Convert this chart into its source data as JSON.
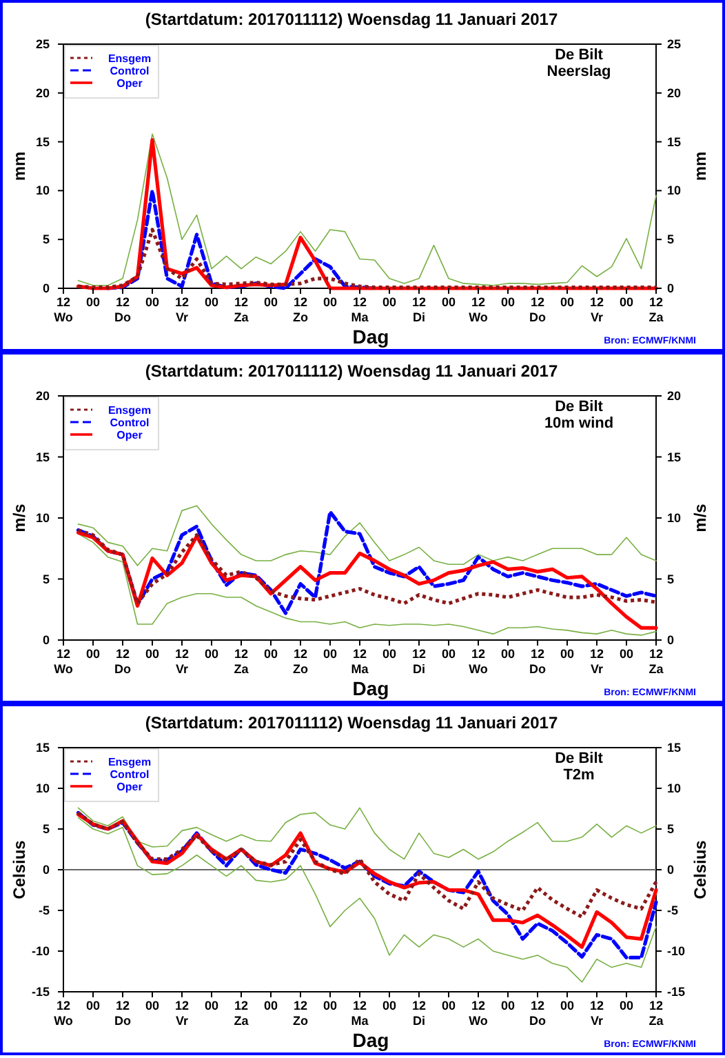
{
  "chart_data": [
    {
      "type": "line",
      "title": "(Startdatum: 2017011112) Woensdag 11 Januari 2017",
      "xlabel": "Dag",
      "ylabel": "mm",
      "y2label": "mm",
      "annotations": [
        "De Bilt\nNeerslag",
        "Bron: ECMWF/KNMI"
      ],
      "legend": "top left",
      "xlim": [
        "2017-01-11T12:00",
        "2017-01-21T12:00"
      ],
      "xticks": [
        {
          "value": "2017-01-11T12:00",
          "label": "12\nWo"
        },
        {
          "value": "2017-01-12T00:00",
          "label": "00"
        },
        {
          "value": "2017-01-12T12:00",
          "label": "12\nDo"
        },
        {
          "value": "2017-01-13T00:00",
          "label": "00"
        },
        {
          "value": "2017-01-13T12:00",
          "label": "12\nVr"
        },
        {
          "value": "2017-01-14T00:00",
          "label": "00"
        },
        {
          "value": "2017-01-14T12:00",
          "label": "12\nZa"
        },
        {
          "value": "2017-01-15T00:00",
          "label": "00"
        },
        {
          "value": "2017-01-15T12:00",
          "label": "12\nZo"
        },
        {
          "value": "2017-01-16T00:00",
          "label": "00"
        },
        {
          "value": "2017-01-16T12:00",
          "label": "12\nMa"
        },
        {
          "value": "2017-01-17T00:00",
          "label": "00"
        },
        {
          "value": "2017-01-17T12:00",
          "label": "12\nDi"
        },
        {
          "value": "2017-01-18T00:00",
          "label": "00"
        },
        {
          "value": "2017-01-18T12:00",
          "label": "12\nWo"
        },
        {
          "value": "2017-01-19T00:00",
          "label": "00"
        },
        {
          "value": "2017-01-19T12:00",
          "label": "12\nDo"
        },
        {
          "value": "2017-01-20T00:00",
          "label": "00"
        },
        {
          "value": "2017-01-20T12:00",
          "label": "12\nVr"
        },
        {
          "value": "2017-01-21T00:00",
          "label": "00"
        },
        {
          "value": "2017-01-21T12:00",
          "label": "12\nZa"
        }
      ],
      "ylim": [
        0,
        25
      ],
      "yticks": [
        0,
        5,
        10,
        15,
        20,
        25
      ],
      "y2lim": [
        0,
        25
      ],
      "y2ticks": [
        0,
        5,
        10,
        15,
        20,
        25
      ],
      "x": [
        "2017-01-11T18:00",
        "2017-01-12T00:00",
        "2017-01-12T06:00",
        "2017-01-12T12:00",
        "2017-01-12T18:00",
        "2017-01-13T00:00",
        "2017-01-13T06:00",
        "2017-01-13T12:00",
        "2017-01-13T18:00",
        "2017-01-14T00:00",
        "2017-01-14T06:00",
        "2017-01-14T12:00",
        "2017-01-14T18:00",
        "2017-01-15T00:00",
        "2017-01-15T06:00",
        "2017-01-15T12:00",
        "2017-01-15T18:00",
        "2017-01-16T00:00",
        "2017-01-16T06:00",
        "2017-01-16T12:00",
        "2017-01-16T18:00",
        "2017-01-17T00:00",
        "2017-01-17T06:00",
        "2017-01-17T12:00",
        "2017-01-17T18:00",
        "2017-01-18T00:00",
        "2017-01-18T06:00",
        "2017-01-18T12:00",
        "2017-01-18T18:00",
        "2017-01-19T00:00",
        "2017-01-19T06:00",
        "2017-01-19T12:00",
        "2017-01-19T18:00",
        "2017-01-20T00:00",
        "2017-01-20T06:00",
        "2017-01-20T12:00",
        "2017-01-20T18:00",
        "2017-01-21T00:00",
        "2017-01-21T06:00",
        "2017-01-21T12:00"
      ],
      "series": [
        {
          "color": "#77b042",
          "line_style": "solid",
          "values": [
            0.8,
            0.3,
            0.3,
            1,
            7,
            15.8,
            11.3,
            5,
            7.5,
            2,
            3.3,
            2,
            3.2,
            2.5,
            3.8,
            5.8,
            3.8,
            6,
            5.8,
            3,
            2.9,
            1,
            0.5,
            1,
            4.4,
            1,
            0.5,
            0.4,
            0.3,
            0.5,
            0.5,
            0.4,
            0.5,
            0.6,
            2.3,
            1.2,
            2.2,
            5.1,
            2,
            9.5
          ]
        },
        {
          "name": "Ensgem",
          "color": "#8b1a1a",
          "line_style": "dotted",
          "values": [
            0.2,
            0.1,
            0.1,
            0.3,
            1.2,
            6,
            2,
            1,
            3,
            0.5,
            0.4,
            0.5,
            0.6,
            0.4,
            0.4,
            0.5,
            1,
            1,
            0.5,
            0.2,
            0.1,
            0.1,
            0.1,
            0.1,
            0.1,
            0.1,
            0.1,
            0.1,
            0.1,
            0.1,
            0.1,
            0.1,
            0.1,
            0.1,
            0.1,
            0.1,
            0.1,
            0.1,
            0.1,
            0.1
          ]
        },
        {
          "name": "Control",
          "color": "#0000ff",
          "line_style": "dashed",
          "values": [
            null,
            null,
            0,
            0.1,
            1,
            10,
            1,
            0.2,
            5.5,
            0.5,
            0.1,
            0.2,
            0.5,
            0.2,
            0,
            1.5,
            3,
            2.2,
            0.2,
            0.1,
            0,
            null,
            null,
            null,
            null,
            null,
            null,
            null,
            null,
            null,
            null,
            null,
            null,
            null,
            null,
            null,
            null,
            null,
            null,
            null
          ]
        },
        {
          "name": "Oper",
          "color": "#ff0000",
          "line_style": "solid",
          "values": [
            0.2,
            0,
            0,
            0.2,
            1.2,
            15.2,
            2,
            1.5,
            2.1,
            0.3,
            0.1,
            0.3,
            0.4,
            0.3,
            0.4,
            5.2,
            2.8,
            0,
            0,
            0,
            0,
            0,
            0,
            0,
            0,
            0,
            0,
            0,
            0,
            0,
            0,
            0,
            0,
            0,
            0,
            0,
            0,
            0,
            0,
            0
          ]
        }
      ]
    },
    {
      "type": "line",
      "title": "(Startdatum: 2017011112) Woensdag 11 Januari 2017",
      "xlabel": "Dag",
      "ylabel": "m/s",
      "y2label": "m/s",
      "annotations": [
        "De Bilt\n10m wind",
        "Bron: ECMWF/KNMI"
      ],
      "legend": "top left",
      "xlim": [
        "2017-01-11T12:00",
        "2017-01-21T12:00"
      ],
      "xticks": [
        {
          "value": "2017-01-11T12:00",
          "label": "12\nWo"
        },
        {
          "value": "2017-01-12T00:00",
          "label": "00"
        },
        {
          "value": "2017-01-12T12:00",
          "label": "12\nDo"
        },
        {
          "value": "2017-01-13T00:00",
          "label": "00"
        },
        {
          "value": "2017-01-13T12:00",
          "label": "12\nVr"
        },
        {
          "value": "2017-01-14T00:00",
          "label": "00"
        },
        {
          "value": "2017-01-14T12:00",
          "label": "12\nZa"
        },
        {
          "value": "2017-01-15T00:00",
          "label": "00"
        },
        {
          "value": "2017-01-15T12:00",
          "label": "12\nZo"
        },
        {
          "value": "2017-01-16T00:00",
          "label": "00"
        },
        {
          "value": "2017-01-16T12:00",
          "label": "12\nMa"
        },
        {
          "value": "2017-01-17T00:00",
          "label": "00"
        },
        {
          "value": "2017-01-17T12:00",
          "label": "12\nDi"
        },
        {
          "value": "2017-01-18T00:00",
          "label": "00"
        },
        {
          "value": "2017-01-18T12:00",
          "label": "12\nWo"
        },
        {
          "value": "2017-01-19T00:00",
          "label": "00"
        },
        {
          "value": "2017-01-19T12:00",
          "label": "12\nDo"
        },
        {
          "value": "2017-01-20T00:00",
          "label": "00"
        },
        {
          "value": "2017-01-20T12:00",
          "label": "12\nVr"
        },
        {
          "value": "2017-01-21T00:00",
          "label": "00"
        },
        {
          "value": "2017-01-21T12:00",
          "label": "12\nZa"
        }
      ],
      "ylim": [
        0,
        20
      ],
      "yticks": [
        0,
        5,
        10,
        15,
        20
      ],
      "y2lim": [
        0,
        20
      ],
      "y2ticks": [
        0,
        5,
        10,
        15,
        20
      ],
      "x": [
        "2017-01-11T18:00",
        "2017-01-12T00:00",
        "2017-01-12T06:00",
        "2017-01-12T12:00",
        "2017-01-12T18:00",
        "2017-01-13T00:00",
        "2017-01-13T06:00",
        "2017-01-13T12:00",
        "2017-01-13T18:00",
        "2017-01-14T00:00",
        "2017-01-14T06:00",
        "2017-01-14T12:00",
        "2017-01-14T18:00",
        "2017-01-15T00:00",
        "2017-01-15T06:00",
        "2017-01-15T12:00",
        "2017-01-15T18:00",
        "2017-01-16T00:00",
        "2017-01-16T06:00",
        "2017-01-16T12:00",
        "2017-01-16T18:00",
        "2017-01-17T00:00",
        "2017-01-17T06:00",
        "2017-01-17T12:00",
        "2017-01-17T18:00",
        "2017-01-18T00:00",
        "2017-01-18T06:00",
        "2017-01-18T12:00",
        "2017-01-18T18:00",
        "2017-01-19T00:00",
        "2017-01-19T06:00",
        "2017-01-19T12:00",
        "2017-01-19T18:00",
        "2017-01-20T00:00",
        "2017-01-20T06:00",
        "2017-01-20T12:00",
        "2017-01-20T18:00",
        "2017-01-21T00:00",
        "2017-01-21T06:00",
        "2017-01-21T12:00"
      ],
      "series": [
        {
          "color": "#77b042",
          "line_style": "solid",
          "values": [
            9.5,
            9.2,
            8,
            7.7,
            6.1,
            7.5,
            7.3,
            10.6,
            11,
            9.5,
            8.2,
            7,
            6.5,
            6.5,
            7,
            7.3,
            7.2,
            7,
            8.5,
            9.6,
            8,
            6.5,
            7,
            7.6,
            6.5,
            6.2,
            6.2,
            7,
            6.5,
            6.8,
            6.5,
            7,
            7.5,
            7.5,
            7.5,
            7,
            7,
            8.4,
            7,
            6.5
          ]
        },
        {
          "color": "#77b042",
          "line_style": "solid",
          "values": [
            8.7,
            8,
            6.8,
            6.4,
            1.3,
            1.3,
            3,
            3.5,
            3.8,
            3.8,
            3.5,
            3.5,
            2.8,
            2.3,
            1.8,
            1.5,
            1.5,
            1.3,
            1.5,
            1,
            1.3,
            1.2,
            1.3,
            1.3,
            1.2,
            1.3,
            1.1,
            0.8,
            0.5,
            1,
            1,
            1.1,
            0.9,
            0.8,
            0.6,
            0.5,
            0.8,
            0.5,
            0.4,
            0.7
          ]
        },
        {
          "name": "Ensgem",
          "color": "#8b1a1a",
          "line_style": "dotted",
          "values": [
            9,
            8.6,
            7.4,
            7,
            3,
            4.6,
            5.4,
            7.2,
            8.6,
            6.6,
            5.3,
            5.6,
            5.1,
            4,
            3.6,
            3.4,
            3.3,
            3.6,
            3.9,
            4.2,
            3.7,
            3.4,
            3,
            3.7,
            3.3,
            3,
            3.4,
            3.8,
            3.7,
            3.5,
            3.8,
            4.1,
            3.8,
            3.5,
            3.5,
            3.7,
            3.5,
            3.2,
            3.3,
            3.1
          ]
        },
        {
          "name": "Control",
          "color": "#0000ff",
          "line_style": "dashed",
          "values": [
            9,
            8.5,
            7.3,
            7,
            2.9,
            5,
            5.6,
            8.6,
            9.3,
            6.5,
            4.5,
            5.5,
            5.3,
            4.1,
            2.2,
            4.6,
            3.5,
            10.5,
            8.9,
            8.7,
            6,
            5.5,
            5.2,
            6,
            4.4,
            4.6,
            4.9,
            6.8,
            5.8,
            5.2,
            5.5,
            5.2,
            4.9,
            4.7,
            4.4,
            4.6,
            4.1,
            3.6,
            3.9,
            3.6
          ]
        },
        {
          "name": "Oper",
          "color": "#ff0000",
          "line_style": "solid",
          "values": [
            8.8,
            8.4,
            7.3,
            7,
            2.8,
            6.7,
            5.3,
            6.3,
            8.5,
            6.3,
            4.9,
            5.3,
            5.2,
            3.8,
            4.9,
            6,
            4.9,
            5.5,
            5.5,
            7.1,
            6.5,
            5.8,
            5.3,
            4.6,
            4.9,
            5.5,
            5.7,
            6.1,
            6.4,
            5.8,
            5.9,
            5.6,
            5.8,
            5.1,
            5.2,
            4.2,
            3,
            1.9,
            1,
            1
          ]
        }
      ]
    },
    {
      "type": "line",
      "title": "(Startdatum: 2017011112) Woensdag 11 Januari 2017",
      "xlabel": "Dag",
      "ylabel": "Celsius",
      "y2label": "Celsius",
      "annotations": [
        "De Bilt\nT2m",
        "Bron: ECMWF/KNMI"
      ],
      "legend": "top left",
      "xlim": [
        "2017-01-11T12:00",
        "2017-01-21T12:00"
      ],
      "xticks": [
        {
          "value": "2017-01-11T12:00",
          "label": "12\nWo"
        },
        {
          "value": "2017-01-12T00:00",
          "label": "00"
        },
        {
          "value": "2017-01-12T12:00",
          "label": "12\nDo"
        },
        {
          "value": "2017-01-13T00:00",
          "label": "00"
        },
        {
          "value": "2017-01-13T12:00",
          "label": "12\nVr"
        },
        {
          "value": "2017-01-14T00:00",
          "label": "00"
        },
        {
          "value": "2017-01-14T12:00",
          "label": "12\nZa"
        },
        {
          "value": "2017-01-15T00:00",
          "label": "00"
        },
        {
          "value": "2017-01-15T12:00",
          "label": "12\nZo"
        },
        {
          "value": "2017-01-16T00:00",
          "label": "00"
        },
        {
          "value": "2017-01-16T12:00",
          "label": "12\nMa"
        },
        {
          "value": "2017-01-17T00:00",
          "label": "00"
        },
        {
          "value": "2017-01-17T12:00",
          "label": "12\nDi"
        },
        {
          "value": "2017-01-18T00:00",
          "label": "00"
        },
        {
          "value": "2017-01-18T12:00",
          "label": "12\nWo"
        },
        {
          "value": "2017-01-19T00:00",
          "label": "00"
        },
        {
          "value": "2017-01-19T12:00",
          "label": "12\nDo"
        },
        {
          "value": "2017-01-20T00:00",
          "label": "00"
        },
        {
          "value": "2017-01-20T12:00",
          "label": "12\nVr"
        },
        {
          "value": "2017-01-21T00:00",
          "label": "00"
        },
        {
          "value": "2017-01-21T12:00",
          "label": "12\nZa"
        }
      ],
      "ylim": [
        -15,
        15
      ],
      "yticks": [
        -15,
        -10,
        -5,
        0,
        5,
        10,
        15
      ],
      "y2lim": [
        -15,
        15
      ],
      "y2ticks": [
        -15,
        -10,
        -5,
        0,
        5,
        10,
        15
      ],
      "ref_lines": [
        {
          "axis": "y",
          "value": 0,
          "color": "#666666"
        }
      ],
      "x": [
        "2017-01-11T18:00",
        "2017-01-12T00:00",
        "2017-01-12T06:00",
        "2017-01-12T12:00",
        "2017-01-12T18:00",
        "2017-01-13T00:00",
        "2017-01-13T06:00",
        "2017-01-13T12:00",
        "2017-01-13T18:00",
        "2017-01-14T00:00",
        "2017-01-14T06:00",
        "2017-01-14T12:00",
        "2017-01-14T18:00",
        "2017-01-15T00:00",
        "2017-01-15T06:00",
        "2017-01-15T12:00",
        "2017-01-15T18:00",
        "2017-01-16T00:00",
        "2017-01-16T06:00",
        "2017-01-16T12:00",
        "2017-01-16T18:00",
        "2017-01-17T00:00",
        "2017-01-17T06:00",
        "2017-01-17T12:00",
        "2017-01-17T18:00",
        "2017-01-18T00:00",
        "2017-01-18T06:00",
        "2017-01-18T12:00",
        "2017-01-18T18:00",
        "2017-01-19T00:00",
        "2017-01-19T06:00",
        "2017-01-19T12:00",
        "2017-01-19T18:00",
        "2017-01-20T00:00",
        "2017-01-20T06:00",
        "2017-01-20T12:00",
        "2017-01-20T18:00",
        "2017-01-21T00:00",
        "2017-01-21T06:00",
        "2017-01-21T12:00"
      ],
      "series": [
        {
          "color": "#77b042",
          "line_style": "solid",
          "values": [
            7.6,
            6,
            5.4,
            6.5,
            3.5,
            2.8,
            2.9,
            4.8,
            5.2,
            4.3,
            3.5,
            4.3,
            3.6,
            3.5,
            5.8,
            6.8,
            7,
            5.5,
            5,
            7.6,
            4.5,
            2.5,
            1.3,
            4.5,
            2,
            1.5,
            2.5,
            1.3,
            2.2,
            3.5,
            4.6,
            5.8,
            3.5,
            3.5,
            4,
            5.6,
            4,
            5.4,
            4.5,
            5.4
          ]
        },
        {
          "color": "#77b042",
          "line_style": "solid",
          "values": [
            6.4,
            5,
            4.4,
            5.2,
            0.5,
            -0.6,
            -0.5,
            0.5,
            1.8,
            0.5,
            -0.8,
            0.5,
            -1.3,
            -1.5,
            -1.2,
            0.5,
            -3,
            -7,
            -5,
            -3.5,
            -6,
            -10.5,
            -8,
            -9.5,
            -8,
            -8.5,
            -9.5,
            -8.5,
            -10,
            -10.5,
            -11,
            -10.5,
            -11.5,
            -12,
            -13.8,
            -11,
            -12,
            -11.5,
            -12,
            -7
          ]
        },
        {
          "name": "Ensgem",
          "color": "#8b1a1a",
          "line_style": "dotted",
          "values": [
            7,
            5.6,
            5,
            5.9,
            3.3,
            1.3,
            1.3,
            2.5,
            4.2,
            2.3,
            1.2,
            2.5,
            1,
            0.6,
            1,
            3.7,
            1,
            0,
            -0.5,
            1.3,
            -1.5,
            -3,
            -3.8,
            -0.5,
            -2.2,
            -3.8,
            -4.8,
            -1.5,
            -3.5,
            -4.3,
            -5,
            -2.2,
            -3.7,
            -4.8,
            -5.8,
            -2.5,
            -3.5,
            -4.3,
            -4.8,
            -1.5
          ]
        },
        {
          "name": "Control",
          "color": "#0000ff",
          "line_style": "dashed",
          "values": [
            7,
            5.5,
            5,
            5.8,
            3.3,
            1.1,
            1.2,
            2.3,
            4.5,
            2.3,
            0.5,
            2.6,
            0.6,
            0,
            -0.4,
            2.5,
            2,
            1.2,
            0.2,
            1,
            -0.8,
            -1.7,
            -2,
            -0.2,
            -1.5,
            -2.5,
            -2.8,
            -0.2,
            -3.8,
            -5.5,
            -8.5,
            -6.6,
            -7.5,
            -9,
            -10.7,
            -8,
            -8.5,
            -10.8,
            -10.8,
            -4
          ]
        },
        {
          "name": "Oper",
          "color": "#ff0000",
          "line_style": "solid",
          "values": [
            6.8,
            5.6,
            5,
            6,
            3.5,
            1,
            0.8,
            2,
            4.3,
            2.5,
            1.3,
            2.5,
            1,
            0.5,
            1.8,
            4.5,
            0.8,
            0.1,
            -0.3,
            0.9,
            -0.5,
            -1.5,
            -2.2,
            -1.6,
            -1.5,
            -2.5,
            -2.5,
            -3,
            -6.2,
            -6.2,
            -6.5,
            -5.6,
            -6.8,
            -8.1,
            -9.5,
            -5.2,
            -6.5,
            -8.3,
            -8.5,
            -2.5
          ]
        }
      ]
    }
  ]
}
